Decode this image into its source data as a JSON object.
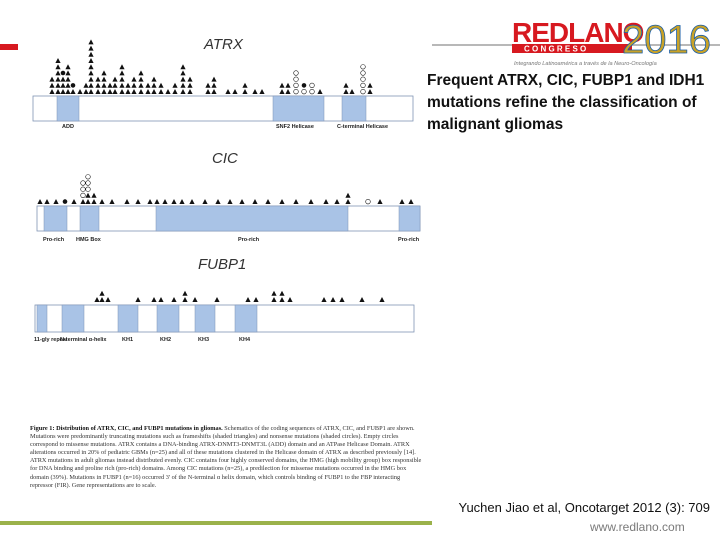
{
  "slide": {
    "title": "Frequent ATRX, CIC, FUBP1 and IDH1 mutations refine the classification of malignant gliomas",
    "citation": "Yuchen Jiao et al, Oncotarget 2012 (3): 709",
    "footer_url": "www.redlano.com",
    "colors": {
      "red": "#d71920",
      "blue": "#1b5fa8",
      "green": "#9bb24b",
      "domain_fill": "#a9c3e6"
    }
  },
  "logo": {
    "red_text": "REDLANO",
    "congress_text": "C O N G R E S O",
    "year": "2016",
    "tagline": "Integrando Latinoamérica a través de la Neuro-Oncología"
  },
  "figure": {
    "atrx": {
      "name": "ATRX",
      "domains": [
        "ADD",
        "SNF2 Helicase",
        "C-terminal Helicase"
      ]
    },
    "cic": {
      "name": "CIC",
      "domains": [
        "Pro-rich",
        "HMG Box",
        "Pro-rich",
        "Pro-rich"
      ]
    },
    "fubp1": {
      "name": "FUBP1",
      "domains": [
        "11-gly repeat",
        "N-terminal α-helix",
        "KH1",
        "KH2",
        "KH3",
        "KH4"
      ]
    },
    "caption": {
      "label": "Figure 1: Distribution of ATRX, CIC, and FUBP1 mutations in gliomas.",
      "text": "Schematics of the coding sequences of ATRX, CIC, and FUBP1 are shown. Mutations were predominantly truncating mutations such as frameshifts (shaded triangles) and nonsense mutations (shaded circles). Empty circles correspond to missense mutations. ATRX contains a DNA-binding ATRX-DNMT3-DNMT3L (ADD) domain and an ATPase Helicase Domain. ATRX alterations occurred in 20% of pediatric GBMs (n=25) and all of these mutations clustered in the Helicase domain of ATRX as described previously [14]. ATRX mutations in adult gliomas instead distributed evenly. CIC contains four highly conserved domains, the HMG (high mobility group) box responsible for DNA binding and proline rich (pro-rich) domains. Among CIC mutations (n=25), a predilection for missense mutations occurred in the HMG box domain (39%). Mutations in FUBP1 (n=16) occurred 3' of the N-terminal α helix domain, which controls binding of FUBP1 to the FBP interacting repressor (FIR). Gene representations are to scale."
    }
  }
}
